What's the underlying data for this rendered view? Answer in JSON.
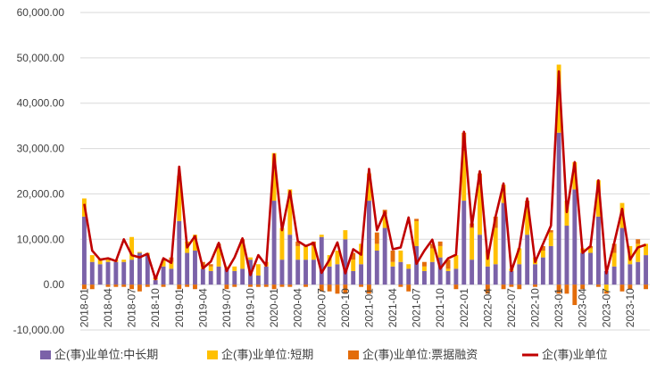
{
  "chart_data": {
    "type": "bar",
    "subtype": "stacked-bar-with-line",
    "title": "",
    "xlabel": "",
    "ylabel": "",
    "ylim": [
      -10000,
      60000
    ],
    "y_ticks": [
      "60,000.00",
      "50,000.00",
      "40,000.00",
      "30,000.00",
      "20,000.00",
      "10,000.00",
      "0.00",
      "-10,000.00"
    ],
    "y_tick_values": [
      60000,
      50000,
      40000,
      30000,
      20000,
      10000,
      0,
      -10000
    ],
    "grid": true,
    "legend_position": "bottom",
    "categories": [
      "2018-01",
      "2018-02",
      "2018-03",
      "2018-04",
      "2018-05",
      "2018-06",
      "2018-07",
      "2018-08",
      "2018-09",
      "2018-10",
      "2018-11",
      "2018-12",
      "2019-01",
      "2019-02",
      "2019-03",
      "2019-04",
      "2019-05",
      "2019-06",
      "2019-07",
      "2019-08",
      "2019-09",
      "2019-10",
      "2019-11",
      "2019-12",
      "2020-01",
      "2020-02",
      "2020-03",
      "2020-04",
      "2020-05",
      "2020-06",
      "2020-07",
      "2020-08",
      "2020-09",
      "2020-10",
      "2020-11",
      "2020-12",
      "2021-01",
      "2021-02",
      "2021-03",
      "2021-04",
      "2021-05",
      "2021-06",
      "2021-07",
      "2021-08",
      "2021-09",
      "2021-10",
      "2021-11",
      "2021-12",
      "2022-01",
      "2022-02",
      "2022-03",
      "2022-04",
      "2022-05",
      "2022-06",
      "2022-07",
      "2022-08",
      "2022-09",
      "2022-10",
      "2022-11",
      "2022-12",
      "2023-01",
      "2023-02",
      "2023-03",
      "2023-04",
      "2023-05",
      "2023-06",
      "2023-07",
      "2023-08",
      "2023-09",
      "2023-10",
      "2023-11",
      "2023-12"
    ],
    "x_tick_labels": [
      "2018-01",
      "2018-04",
      "2018-07",
      "2018-10",
      "2019-01",
      "2019-04",
      "2019-07",
      "2019-10",
      "2020-01",
      "2020-04",
      "2020-07",
      "2020-10",
      "2021-01",
      "2021-04",
      "2021-07",
      "2021-10",
      "2022-01",
      "2022-04",
      "2022-07",
      "2022-10",
      "2023-01",
      "2023-04",
      "2023-07",
      "2023-10"
    ],
    "series": [
      {
        "name": "企(事)业单位:中长期",
        "type": "bar",
        "color": "#7b62a8",
        "values": [
          15000,
          5000,
          4500,
          5000,
          5000,
          5000,
          5500,
          7000,
          6500,
          1000,
          4000,
          3500,
          14000,
          7000,
          7500,
          3500,
          3000,
          4000,
          3500,
          3000,
          3500,
          5500,
          2000,
          4000,
          18500,
          5500,
          11000,
          5500,
          5500,
          5500,
          10500,
          4000,
          4500,
          10000,
          3000,
          4500,
          18500,
          7500,
          12500,
          4000,
          5000,
          3500,
          8500,
          3000,
          5000,
          6000,
          3000,
          3500,
          18500,
          5500,
          11000,
          4000,
          4500,
          18000,
          3000,
          4500,
          11000,
          4500,
          6000,
          8500,
          33500,
          13000,
          21000,
          7000,
          7000,
          15000,
          3000,
          4000,
          12500,
          4500,
          5000,
          6500
        ]
      },
      {
        "name": "企(事)业单位:短期",
        "type": "bar",
        "color": "#ffc000",
        "values": [
          4000,
          1500,
          1000,
          500,
          500,
          500,
          5000,
          200,
          500,
          200,
          1500,
          1500,
          10000,
          2500,
          3500,
          500,
          1000,
          4000,
          500,
          1000,
          5500,
          500,
          2500,
          1000,
          10500,
          7000,
          10000,
          3000,
          3000,
          3000,
          500,
          2500,
          3000,
          2000,
          2500,
          4500,
          6000,
          1500,
          3000,
          1000,
          2500,
          1000,
          5500,
          1000,
          3000,
          2500,
          500,
          3000,
          11000,
          7000,
          11000,
          3500,
          8000,
          4000,
          500,
          3500,
          6500,
          1500,
          1500,
          3000,
          15000,
          5500,
          6000,
          1000,
          1000,
          8000,
          -1500,
          3000,
          5500,
          4000,
          4000,
          2500
        ]
      },
      {
        "name": "企(事)业单位:票据融资",
        "type": "bar",
        "color": "#e36c0a",
        "values": [
          -1000,
          -1000,
          300,
          -500,
          -500,
          -500,
          -1000,
          -1500,
          -500,
          500,
          -500,
          1000,
          -1000,
          -500,
          -1000,
          1000,
          500,
          1000,
          -1000,
          -500,
          1000,
          -500,
          -500,
          -500,
          -1000,
          -500,
          -500,
          1000,
          -500,
          1000,
          -1500,
          -1500,
          -2000,
          -2000,
          1500,
          -500,
          -2000,
          2500,
          1000,
          2500,
          -500,
          -1500,
          500,
          1000,
          1000,
          1000,
          2000,
          -1000,
          4000,
          1000,
          2500,
          -2000,
          2500,
          -1000,
          -500,
          -1000,
          1000,
          -500,
          1000,
          500,
          -2000,
          -2000,
          -4500,
          -1000,
          500,
          -500,
          -500,
          2000,
          -1500,
          -1000,
          1000,
          -1000
        ]
      },
      {
        "name": "企(事)业单位",
        "type": "line",
        "color": "#c00000",
        "values": [
          17800,
          7500,
          5500,
          5800,
          5200,
          10000,
          6500,
          6000,
          6800,
          1200,
          5800,
          4800,
          26000,
          8200,
          10700,
          3600,
          5100,
          9200,
          3000,
          6000,
          10200,
          2100,
          6500,
          4200,
          28700,
          12000,
          20600,
          9600,
          8500,
          9200,
          2600,
          5500,
          9300,
          2500,
          7800,
          6600,
          25500,
          12000,
          16000,
          7800,
          8200,
          14800,
          4600,
          7500,
          9900,
          3500,
          5800,
          6600,
          33700,
          12900,
          25000,
          5700,
          15000,
          22300,
          3000,
          8100,
          19000,
          5000,
          9000,
          13000,
          47000,
          16000,
          27000,
          7000,
          8500,
          23000,
          2500,
          9200,
          16700,
          5500,
          8200,
          8800
        ]
      }
    ]
  }
}
